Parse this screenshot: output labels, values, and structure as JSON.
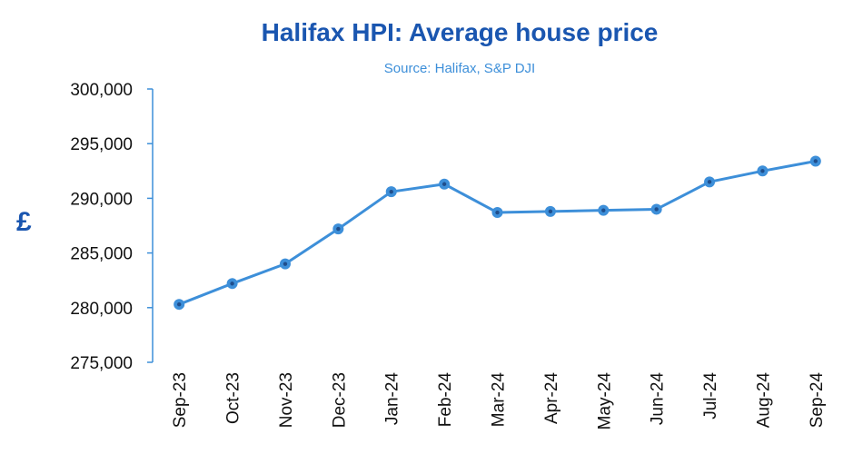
{
  "chart_data": {
    "type": "line",
    "title": "Halifax HPI: Average house price",
    "subtitle": "Source: Halifax, S&P DJI",
    "ylabel": "£",
    "xlabel": "",
    "categories": [
      "Sep-23",
      "Oct-23",
      "Nov-23",
      "Dec-23",
      "Jan-24",
      "Feb-24",
      "Mar-24",
      "Apr-24",
      "May-24",
      "Jun-24",
      "Jul-24",
      "Aug-24",
      "Sep-24"
    ],
    "series": [
      {
        "values": [
          280300,
          282200,
          284000,
          287200,
          290600,
          291300,
          288700,
          288800,
          288900,
          289000,
          291500,
          292500,
          293400
        ]
      }
    ],
    "ylim": [
      275000,
      300000
    ],
    "yticks": [
      "275,000",
      "280,000",
      "285,000",
      "290,000",
      "295,000",
      "300,000"
    ],
    "grid": false,
    "line_color": "#3d8fd9",
    "marker_center_color": "#1f4e8c"
  }
}
